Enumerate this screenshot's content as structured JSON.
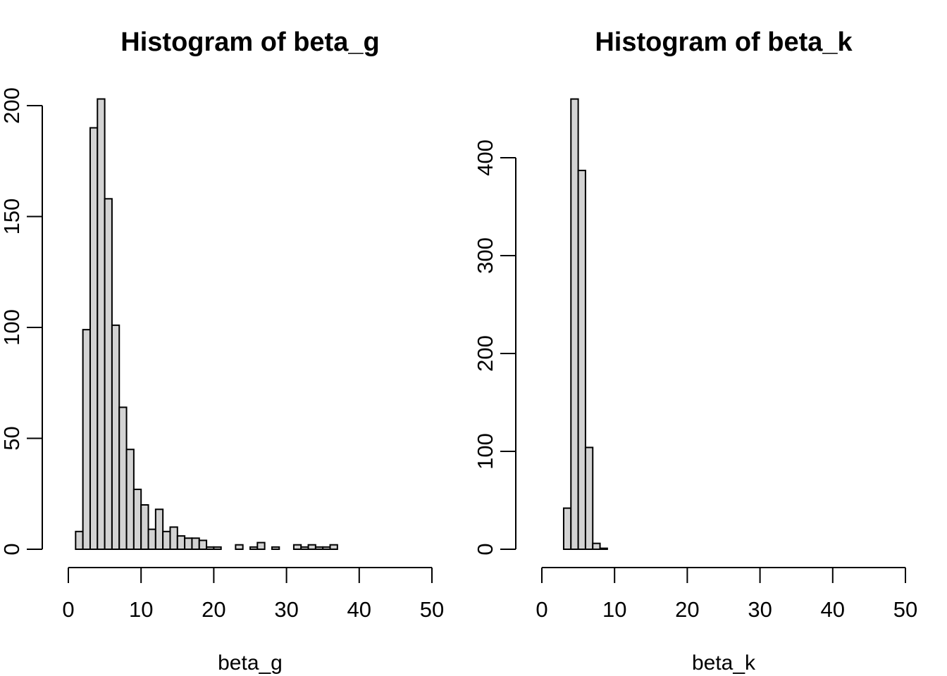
{
  "chart_data": [
    {
      "type": "bar",
      "title": "Histogram of beta_g",
      "xlabel": "beta_g",
      "ylabel": "",
      "bin_width": 1,
      "xlim": [
        0,
        50
      ],
      "ylim": [
        0,
        200
      ],
      "x_ticks": [
        "0",
        "10",
        "20",
        "30",
        "40",
        "50"
      ],
      "y_ticks": [
        "0",
        "50",
        "100",
        "150",
        "200"
      ],
      "categories": [
        "1-2",
        "2-3",
        "3-4",
        "4-5",
        "5-6",
        "6-7",
        "7-8",
        "8-9",
        "9-10",
        "10-11",
        "11-12",
        "12-13",
        "13-14",
        "14-15",
        "15-16",
        "16-17",
        "17-18",
        "18-19",
        "19-20",
        "20-21",
        "21-22",
        "22-23",
        "23-24",
        "24-25",
        "25-26",
        "26-27",
        "27-28",
        "28-29",
        "29-30",
        "30-31",
        "31-32",
        "32-33",
        "33-34",
        "34-35",
        "35-36",
        "36-37",
        "37-38",
        "38-39",
        "39-40",
        "40-41",
        "41-42",
        "42-43",
        "43-44",
        "44-45",
        "45-46",
        "46-47",
        "47-48",
        "48-49",
        "49-50"
      ],
      "values": [
        8,
        99,
        190,
        203,
        158,
        101,
        64,
        45,
        27,
        20,
        9,
        18,
        8,
        10,
        6,
        5,
        5,
        4,
        1,
        1,
        0,
        0,
        2,
        0,
        1,
        3,
        0,
        1,
        0,
        0,
        2,
        1,
        2,
        1,
        1,
        2,
        0,
        0,
        0,
        0,
        0,
        0,
        0,
        0,
        0,
        0,
        0,
        0,
        0
      ],
      "fill": "#d3d3d3",
      "grid": false
    },
    {
      "type": "bar",
      "title": "Histogram of beta_k",
      "xlabel": "beta_k",
      "ylabel": "",
      "bin_width": 1,
      "xlim": [
        0,
        50
      ],
      "ylim": [
        0,
        400
      ],
      "x_ticks": [
        "0",
        "10",
        "20",
        "30",
        "40",
        "50"
      ],
      "y_ticks": [
        "0",
        "100",
        "200",
        "300",
        "400"
      ],
      "categories": [
        "3-4",
        "4-5",
        "5-6",
        "6-7",
        "7-8",
        "8-9",
        "9-10",
        "10-11",
        "11-12",
        "12-13",
        "13-14",
        "14-15",
        "15-16",
        "16-17",
        "17-18",
        "18-19",
        "19-20",
        "20-21",
        "21-22",
        "22-23",
        "23-24",
        "24-25",
        "25-26",
        "26-27",
        "27-28",
        "28-29",
        "29-30",
        "30-31",
        "31-32",
        "32-33",
        "33-34",
        "34-35",
        "35-36",
        "36-37",
        "37-38",
        "38-39",
        "39-40",
        "40-41",
        "41-42",
        "42-43",
        "43-44",
        "44-45",
        "45-46",
        "46-47",
        "47-48",
        "48-49",
        "49-50"
      ],
      "values": [
        42,
        460,
        387,
        104,
        6,
        1,
        0,
        0,
        0,
        0,
        0,
        0,
        0,
        0,
        0,
        0,
        0,
        0,
        0,
        0,
        0,
        0,
        0,
        0,
        0,
        0,
        0,
        0,
        0,
        0,
        0,
        0,
        0,
        0,
        0,
        0,
        0,
        0,
        0,
        0,
        0,
        0,
        0,
        0,
        0,
        0,
        0
      ],
      "fill": "#d3d3d3",
      "grid": false
    }
  ]
}
